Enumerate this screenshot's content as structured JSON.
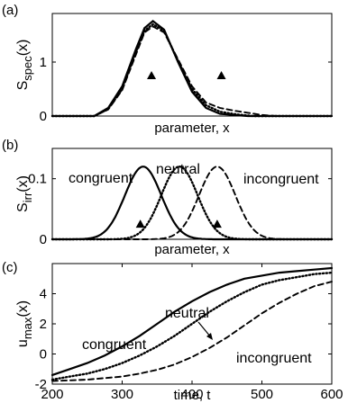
{
  "chart_data": [
    {
      "panel": "(a)",
      "type": "line",
      "ylabel_main": "S",
      "ylabel_sub": "spec",
      "ylabel_arg": "(x)",
      "xlabel": "parameter, x",
      "xlim": [
        0,
        1
      ],
      "ylim": [
        0,
        1.9
      ],
      "yticks": [
        0,
        1
      ],
      "xticks_labeled": false,
      "series": [
        {
          "style": "solid",
          "x": [
            0.0,
            0.15,
            0.2,
            0.25,
            0.3,
            0.33,
            0.36,
            0.4,
            0.45,
            0.5,
            0.55,
            0.6,
            0.7,
            1.0
          ],
          "y": [
            0.0,
            0.0,
            0.15,
            0.55,
            1.25,
            1.63,
            1.76,
            1.6,
            1.0,
            0.45,
            0.15,
            0.04,
            0.0,
            0.0
          ]
        },
        {
          "style": "dotted",
          "x": [
            0.0,
            0.15,
            0.2,
            0.25,
            0.3,
            0.33,
            0.36,
            0.4,
            0.45,
            0.5,
            0.55,
            0.6,
            0.66,
            0.72,
            1.0
          ],
          "y": [
            0.0,
            0.0,
            0.13,
            0.5,
            1.2,
            1.58,
            1.7,
            1.58,
            1.02,
            0.5,
            0.2,
            0.08,
            0.03,
            0.0,
            0.0
          ]
        },
        {
          "style": "dashed",
          "x": [
            0.0,
            0.15,
            0.2,
            0.25,
            0.3,
            0.33,
            0.36,
            0.4,
            0.45,
            0.5,
            0.55,
            0.6,
            0.65,
            0.7,
            0.75,
            0.8,
            1.0
          ],
          "y": [
            0.0,
            0.0,
            0.12,
            0.48,
            1.15,
            1.55,
            1.66,
            1.55,
            1.05,
            0.55,
            0.25,
            0.15,
            0.1,
            0.06,
            0.02,
            0.0,
            0.0
          ]
        }
      ],
      "markers": [
        {
          "type": "triangle",
          "x": 0.355,
          "y": 0.75
        },
        {
          "type": "triangle",
          "x": 0.605,
          "y": 0.75
        }
      ]
    },
    {
      "panel": "(b)",
      "type": "line",
      "ylabel_main": "S",
      "ylabel_sub": "irr",
      "ylabel_arg": "(x)",
      "xlabel": "parameter, x",
      "xlim": [
        0,
        1
      ],
      "ylim": [
        0,
        0.15
      ],
      "yticks": [
        0,
        0.1
      ],
      "ytick_labels": [
        "0",
        "0.1"
      ],
      "xticks_labeled": false,
      "series": [
        {
          "name": "congruent",
          "style": "solid",
          "center": 0.325,
          "width": 0.065,
          "peak": 0.12
        },
        {
          "name": "neutral",
          "style": "dotted",
          "center": 0.455,
          "width": 0.065,
          "peak": 0.12
        },
        {
          "name": "incongruent",
          "style": "dashed",
          "center": 0.59,
          "width": 0.065,
          "peak": 0.12
        }
      ],
      "markers": [
        {
          "type": "triangle",
          "x": 0.315,
          "y": 0.025
        },
        {
          "type": "triangle",
          "x": 0.59,
          "y": 0.025
        }
      ]
    },
    {
      "panel": "(c)",
      "type": "line",
      "ylabel_main": "u",
      "ylabel_sub": "max",
      "ylabel_arg": "(x)",
      "xlabel": "time, t",
      "xlim": [
        200,
        600
      ],
      "ylim": [
        -2,
        6
      ],
      "yticks": [
        -2,
        0,
        2,
        4
      ],
      "xticks": [
        200,
        300,
        400,
        500,
        600
      ],
      "series": [
        {
          "name": "congruent",
          "style": "solid",
          "x": [
            200,
            225,
            250,
            275,
            300,
            325,
            350,
            375,
            400,
            425,
            450,
            475,
            500,
            525,
            550,
            575,
            600
          ],
          "y": [
            -1.4,
            -1.0,
            -0.6,
            -0.1,
            0.5,
            1.2,
            2.0,
            2.8,
            3.5,
            4.1,
            4.6,
            5.0,
            5.2,
            5.4,
            5.5,
            5.6,
            5.7
          ]
        },
        {
          "name": "neutral",
          "style": "dotted",
          "x": [
            200,
            225,
            250,
            275,
            300,
            325,
            350,
            375,
            400,
            425,
            450,
            475,
            500,
            525,
            550,
            575,
            600
          ],
          "y": [
            -1.7,
            -1.5,
            -1.3,
            -1.0,
            -0.6,
            -0.1,
            0.5,
            1.2,
            2.0,
            2.8,
            3.5,
            4.1,
            4.6,
            4.9,
            5.1,
            5.3,
            5.4
          ]
        },
        {
          "name": "incongruent",
          "style": "dashed",
          "x": [
            200,
            225,
            250,
            275,
            300,
            325,
            350,
            375,
            400,
            425,
            450,
            475,
            500,
            525,
            550,
            575,
            600
          ],
          "y": [
            -1.8,
            -1.75,
            -1.7,
            -1.6,
            -1.5,
            -1.3,
            -1.05,
            -0.7,
            -0.2,
            0.4,
            1.1,
            1.9,
            2.7,
            3.4,
            4.0,
            4.5,
            4.8
          ]
        }
      ]
    }
  ]
}
